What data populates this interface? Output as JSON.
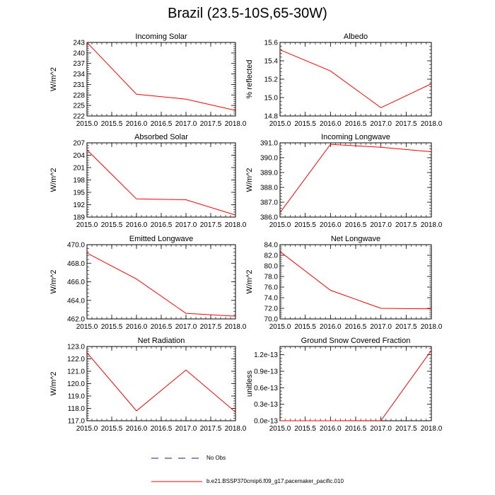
{
  "title": "Brazil (23.5-10S,65-30W)",
  "x_ticks": [
    "2015.0",
    "2015.5",
    "2016.0",
    "2016.5",
    "2017.0",
    "2017.5",
    "2018.0"
  ],
  "legend": {
    "obs_label": "No Obs",
    "model_label": "b.e21.BSSP370cmip6.f09_g17.pacemaker_pacific.010",
    "obs_color": "#1a1a8c",
    "model_color": "#ff0000"
  },
  "chart_data": [
    {
      "type": "line",
      "title": "Incoming Solar",
      "ylabel": "W/m^2",
      "x": [
        2015,
        2016,
        2017,
        2018
      ],
      "values": [
        243.0,
        228.2,
        226.8,
        223.6
      ],
      "ylim": [
        222,
        243
      ],
      "yticks": [
        222,
        225,
        228,
        231,
        234,
        237,
        240,
        243
      ],
      "ytick_labels": [
        "222",
        "225",
        "228",
        "231",
        "234",
        "237",
        "240",
        "243"
      ]
    },
    {
      "type": "line",
      "title": "Albedo",
      "ylabel": "% reflected",
      "x": [
        2015,
        2016,
        2017,
        2018
      ],
      "values": [
        15.52,
        15.29,
        14.89,
        15.15
      ],
      "ylim": [
        14.8,
        15.6
      ],
      "yticks": [
        14.8,
        15.0,
        15.2,
        15.4,
        15.6
      ],
      "ytick_labels": [
        "14.8",
        "15.0",
        "15.2",
        "15.4",
        "15.6"
      ]
    },
    {
      "type": "line",
      "title": "Absorbed Solar",
      "ylabel": "W/m^2",
      "x": [
        2015,
        2016,
        2017,
        2018
      ],
      "values": [
        205.3,
        193.4,
        193.2,
        189.5
      ],
      "ylim": [
        189,
        207
      ],
      "yticks": [
        189,
        192,
        195,
        198,
        201,
        204,
        207
      ],
      "ytick_labels": [
        "189",
        "192",
        "195",
        "198",
        "201",
        "204",
        "207"
      ]
    },
    {
      "type": "line",
      "title": "Incoming Longwave",
      "ylabel": "W/m^2",
      "x": [
        2015,
        2016,
        2017,
        2018
      ],
      "values": [
        386.3,
        390.9,
        390.7,
        390.4
      ],
      "ylim": [
        386.0,
        391.0
      ],
      "yticks": [
        386,
        387,
        388,
        389,
        390,
        391
      ],
      "ytick_labels": [
        "386.0",
        "387.0",
        "388.0",
        "389.0",
        "390.0",
        "391.0"
      ]
    },
    {
      "type": "line",
      "title": "Emitted Longwave",
      "ylabel": "W/m^2",
      "x": [
        2015,
        2016,
        2017,
        2018
      ],
      "values": [
        469.1,
        466.3,
        462.6,
        462.3
      ],
      "ylim": [
        462.0,
        470.0
      ],
      "yticks": [
        462,
        464,
        466,
        468,
        470
      ],
      "ytick_labels": [
        "462.0",
        "464.0",
        "466.0",
        "468.0",
        "470.0"
      ]
    },
    {
      "type": "line",
      "title": "Net Longwave",
      "ylabel": "W/m^2",
      "x": [
        2015,
        2016,
        2017,
        2018
      ],
      "values": [
        82.7,
        75.4,
        72.0,
        71.9
      ],
      "ylim": [
        70.0,
        84.0
      ],
      "yticks": [
        70,
        72,
        74,
        76,
        78,
        80,
        82,
        84
      ],
      "ytick_labels": [
        "70.0",
        "72.0",
        "74.0",
        "76.0",
        "78.0",
        "80.0",
        "82.0",
        "84.0"
      ]
    },
    {
      "type": "line",
      "title": "Net Radiation",
      "ylabel": "W/m^2",
      "x": [
        2015,
        2016,
        2017,
        2018
      ],
      "values": [
        122.5,
        117.8,
        121.1,
        117.7
      ],
      "ylim": [
        117.0,
        123.0
      ],
      "yticks": [
        117,
        118,
        119,
        120,
        121,
        122,
        123
      ],
      "ytick_labels": [
        "117.0",
        "118.0",
        "119.0",
        "120.0",
        "121.0",
        "122.0",
        "123.0"
      ]
    },
    {
      "type": "line",
      "title": "Ground Snow Covered Fraction",
      "ylabel": "unitless",
      "x": [
        2015,
        2016,
        2017,
        2018
      ],
      "values": [
        0.0,
        0.0,
        0.003,
        1.28
      ],
      "value_scale": "1e-13",
      "ylim": [
        0.0,
        1.35
      ],
      "yticks": [
        0.0,
        0.3,
        0.6,
        0.9,
        1.2
      ],
      "ytick_labels": [
        "0.0e-13",
        "0.3e-13",
        "0.6e-13",
        "0.9e-13",
        "1.2e-13"
      ]
    }
  ]
}
